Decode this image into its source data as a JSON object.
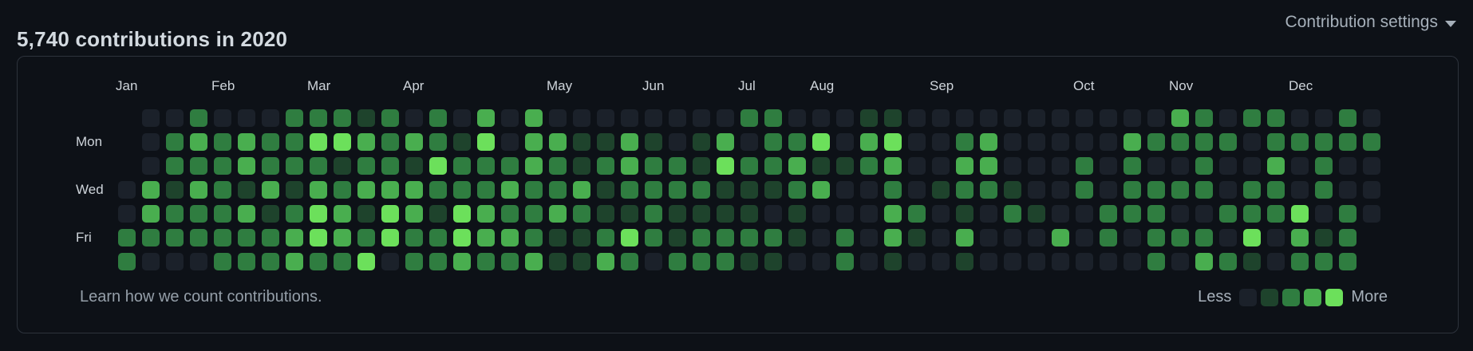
{
  "header": {
    "title": "5,740 contributions in 2020",
    "settings_label": "Contribution settings",
    "caret_icon": "caret-down"
  },
  "graph": {
    "months": [
      {
        "label": "Jan",
        "week": 0
      },
      {
        "label": "Feb",
        "week": 4
      },
      {
        "label": "Mar",
        "week": 8
      },
      {
        "label": "Apr",
        "week": 12
      },
      {
        "label": "May",
        "week": 18
      },
      {
        "label": "Jun",
        "week": 22
      },
      {
        "label": "Jul",
        "week": 26
      },
      {
        "label": "Aug",
        "week": 29
      },
      {
        "label": "Sep",
        "week": 34
      },
      {
        "label": "Oct",
        "week": 40
      },
      {
        "label": "Nov",
        "week": 44
      },
      {
        "label": "Dec",
        "week": 49
      }
    ],
    "day_labels": [
      {
        "label": "Mon",
        "row": 1
      },
      {
        "label": "Wed",
        "row": 3
      },
      {
        "label": "Fri",
        "row": 5
      }
    ],
    "level_colors": [
      "#1b212a",
      "#1e432c",
      "#2f7d40",
      "#49ae4f",
      "#6ce05b"
    ],
    "weeks": [
      [
        null,
        null,
        null,
        0,
        0,
        2,
        2
      ],
      [
        0,
        0,
        0,
        3,
        3,
        2,
        0
      ],
      [
        0,
        2,
        2,
        1,
        2,
        2,
        0
      ],
      [
        2,
        3,
        2,
        3,
        2,
        2,
        0
      ],
      [
        0,
        2,
        2,
        2,
        2,
        2,
        2
      ],
      [
        0,
        3,
        3,
        1,
        3,
        2,
        2
      ],
      [
        0,
        2,
        2,
        3,
        1,
        2,
        2
      ],
      [
        2,
        2,
        2,
        1,
        2,
        3,
        3
      ],
      [
        2,
        4,
        2,
        3,
        4,
        4,
        2
      ],
      [
        2,
        4,
        1,
        2,
        3,
        3,
        2
      ],
      [
        1,
        3,
        2,
        3,
        1,
        2,
        4
      ],
      [
        2,
        2,
        2,
        3,
        4,
        4,
        0
      ],
      [
        0,
        3,
        1,
        3,
        3,
        2,
        2
      ],
      [
        2,
        2,
        4,
        2,
        1,
        2,
        2
      ],
      [
        0,
        1,
        2,
        2,
        4,
        4,
        3
      ],
      [
        3,
        4,
        2,
        2,
        3,
        3,
        2
      ],
      [
        0,
        0,
        2,
        3,
        2,
        3,
        2
      ],
      [
        3,
        3,
        3,
        2,
        2,
        2,
        3
      ],
      [
        0,
        3,
        2,
        2,
        3,
        1,
        1
      ],
      [
        0,
        1,
        1,
        3,
        2,
        1,
        1
      ],
      [
        0,
        1,
        2,
        1,
        1,
        2,
        3
      ],
      [
        0,
        3,
        3,
        2,
        1,
        4,
        2
      ],
      [
        0,
        1,
        2,
        2,
        2,
        2,
        0
      ],
      [
        0,
        0,
        2,
        2,
        1,
        1,
        2
      ],
      [
        0,
        1,
        1,
        2,
        1,
        2,
        2
      ],
      [
        0,
        3,
        4,
        1,
        1,
        2,
        2
      ],
      [
        2,
        0,
        2,
        1,
        1,
        2,
        1
      ],
      [
        2,
        2,
        2,
        1,
        0,
        2,
        1
      ],
      [
        0,
        2,
        3,
        2,
        1,
        1,
        0
      ],
      [
        0,
        4,
        1,
        3,
        0,
        0,
        0
      ],
      [
        0,
        0,
        1,
        0,
        0,
        2,
        2
      ],
      [
        1,
        3,
        2,
        0,
        0,
        0,
        0
      ],
      [
        1,
        4,
        3,
        2,
        3,
        3,
        1
      ],
      [
        0,
        0,
        0,
        0,
        2,
        1,
        0
      ],
      [
        0,
        0,
        0,
        1,
        0,
        0,
        0
      ],
      [
        0,
        2,
        3,
        2,
        1,
        3,
        1
      ],
      [
        0,
        3,
        3,
        2,
        0,
        0,
        0
      ],
      [
        0,
        0,
        0,
        1,
        2,
        0,
        0
      ],
      [
        0,
        0,
        0,
        0,
        1,
        0,
        0
      ],
      [
        0,
        0,
        0,
        0,
        0,
        3,
        0
      ],
      [
        0,
        0,
        2,
        2,
        0,
        0,
        0
      ],
      [
        0,
        0,
        0,
        0,
        2,
        2,
        0
      ],
      [
        0,
        3,
        2,
        2,
        2,
        0,
        0
      ],
      [
        0,
        2,
        0,
        2,
        2,
        2,
        2
      ],
      [
        3,
        2,
        0,
        2,
        0,
        2,
        0
      ],
      [
        2,
        2,
        2,
        2,
        0,
        2,
        3
      ],
      [
        0,
        2,
        0,
        0,
        2,
        0,
        2
      ],
      [
        2,
        0,
        0,
        2,
        2,
        4,
        1
      ],
      [
        2,
        2,
        3,
        2,
        2,
        0,
        0
      ],
      [
        0,
        2,
        0,
        0,
        4,
        3,
        2
      ],
      [
        0,
        2,
        2,
        2,
        0,
        1,
        2
      ],
      [
        2,
        2,
        0,
        0,
        2,
        2,
        2
      ],
      [
        0,
        2,
        0,
        0,
        0,
        null,
        null
      ]
    ],
    "legend": {
      "less_label": "Less",
      "more_label": "More"
    }
  },
  "footer": {
    "link_label": "Learn how we count contributions."
  }
}
